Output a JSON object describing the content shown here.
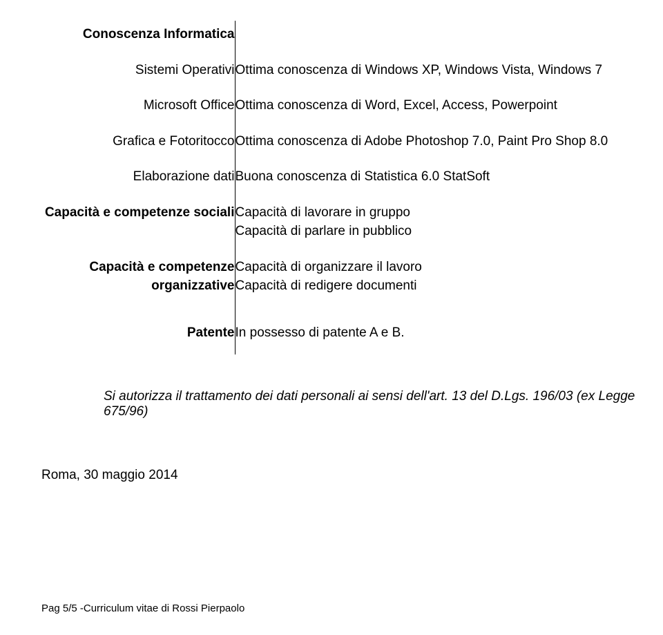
{
  "header": {
    "title": "Conoscenza Informatica"
  },
  "rows": {
    "os": {
      "label": "Sistemi Operativi",
      "value": "Ottima conoscenza di Windows XP, Windows Vista, Windows 7"
    },
    "office": {
      "label": "Microsoft Office",
      "value": "Ottima conoscenza di Word, Excel, Access, Powerpoint"
    },
    "graphics": {
      "label": "Grafica e Fotoritocco",
      "value": "Ottima conoscenza di Adobe Photoshop 7.0, Paint Pro Shop 8.0"
    },
    "data": {
      "label": "Elaborazione dati",
      "value": "Buona conoscenza di Statistica 6.0 StatSoft"
    },
    "social": {
      "label": "Capacità e competenze sociali",
      "value1": "Capacità di lavorare in gruppo",
      "value2": "Capacità di parlare in pubblico"
    },
    "org": {
      "label1": "Capacità e competenze",
      "label2": "organizzative",
      "value1": "Capacità di organizzare il lavoro",
      "value2": "Capacità di redigere documenti"
    },
    "license": {
      "label": "Patente",
      "value": "In possesso di patente A e B."
    }
  },
  "note": "Si autorizza il trattamento dei dati personali ai sensi dell'art. 13 del D.Lgs. 196/03 (ex Legge 675/96)",
  "date": "Roma, 30 maggio 2014",
  "footer": "Pag 5/5 -Curriculum vitae di Rossi Pierpaolo"
}
